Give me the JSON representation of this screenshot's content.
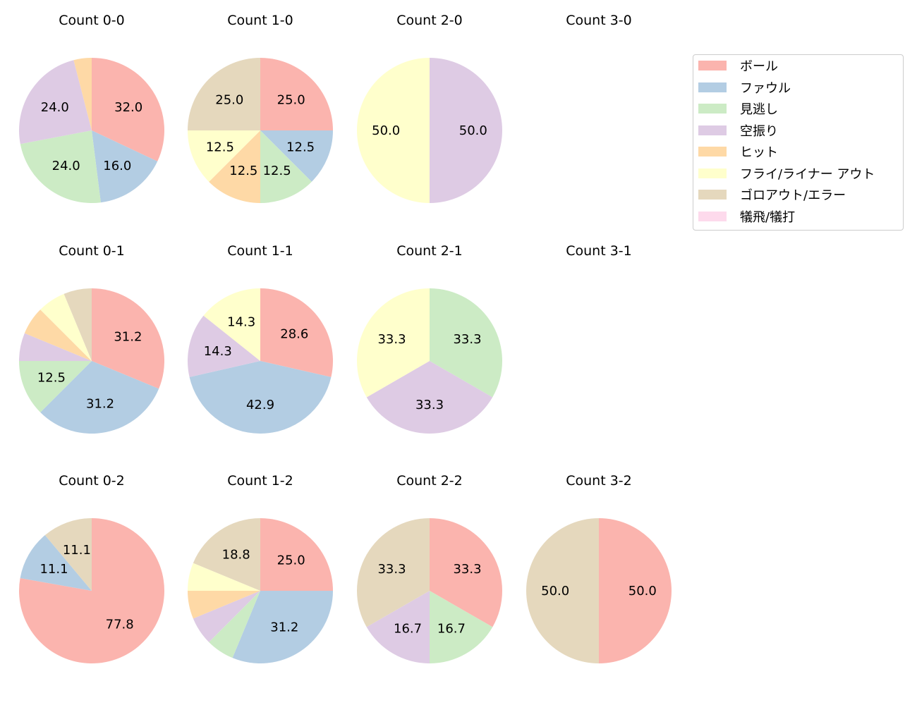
{
  "chart_data": {
    "type": "pie",
    "legend": {
      "placement": "right",
      "entries": [
        "ボール",
        "ファウル",
        "見逃し",
        "空振り",
        "ヒット",
        "フライ/ライナー アウト",
        "ゴロアウト/エラー",
        "犠飛/犠打"
      ]
    },
    "colors": [
      "#fbb4ae",
      "#b3cde3",
      "#ccebc5",
      "#decbe4",
      "#fed9a6",
      "#ffffcc",
      "#e5d8bd",
      "#fddaec"
    ],
    "charts": [
      {
        "title": "Count 0-0",
        "values": [
          32,
          16,
          24,
          24,
          4,
          0,
          0,
          0
        ],
        "labels": [
          "32.0",
          "16.0",
          "24.0",
          "24.0",
          "",
          "",
          "",
          ""
        ]
      },
      {
        "title": "Count 1-0",
        "values": [
          25,
          12.5,
          12.5,
          0,
          12.5,
          12.5,
          25,
          0
        ],
        "labels": [
          "25.0",
          "12.5",
          "12.5",
          "",
          "12.5",
          "12.5",
          "25.0",
          ""
        ]
      },
      {
        "title": "Count 2-0",
        "values": [
          0,
          0,
          0,
          50,
          0,
          50,
          0,
          0
        ],
        "labels": [
          "",
          "",
          "",
          "50.0",
          "",
          "50.0",
          "",
          ""
        ]
      },
      {
        "title": "Count 3-0",
        "values": []
      },
      {
        "title": "Count 0-1",
        "values": [
          31.25,
          31.25,
          12.5,
          6.25,
          6.25,
          6.25,
          6.25,
          0
        ],
        "labels": [
          "31.2",
          "31.2",
          "12.5",
          "",
          "",
          "",
          "",
          ""
        ]
      },
      {
        "title": "Count 1-1",
        "values": [
          28.6,
          42.9,
          0,
          14.3,
          0,
          14.3,
          0,
          0
        ],
        "labels": [
          "28.6",
          "42.9",
          "",
          "14.3",
          "",
          "14.3",
          "",
          ""
        ]
      },
      {
        "title": "Count 2-1",
        "values": [
          0,
          0,
          33.3,
          33.3,
          0,
          33.3,
          0,
          0
        ],
        "labels": [
          "",
          "",
          "33.3",
          "33.3",
          "",
          "33.3",
          "",
          ""
        ]
      },
      {
        "title": "Count 3-1",
        "values": []
      },
      {
        "title": "Count 0-2",
        "values": [
          77.8,
          11.1,
          0,
          0,
          0,
          0,
          11.1,
          0
        ],
        "labels": [
          "77.8",
          "11.1",
          "",
          "",
          "",
          "",
          "11.1",
          ""
        ]
      },
      {
        "title": "Count 1-2",
        "values": [
          25,
          31.25,
          6.25,
          6.25,
          6.25,
          6.25,
          18.75,
          0
        ],
        "labels": [
          "25.0",
          "31.2",
          "",
          "",
          "",
          "",
          "18.8",
          ""
        ]
      },
      {
        "title": "Count 2-2",
        "values": [
          33.3,
          0,
          16.7,
          16.7,
          0,
          0,
          33.3,
          0
        ],
        "labels": [
          "33.3",
          "",
          "16.7",
          "16.7",
          "",
          "",
          "33.3",
          ""
        ]
      },
      {
        "title": "Count 3-2",
        "values": [
          50,
          0,
          0,
          0,
          0,
          0,
          50,
          0
        ],
        "labels": [
          "50.0",
          "",
          "",
          "",
          "",
          "",
          "50.0",
          ""
        ]
      }
    ]
  }
}
